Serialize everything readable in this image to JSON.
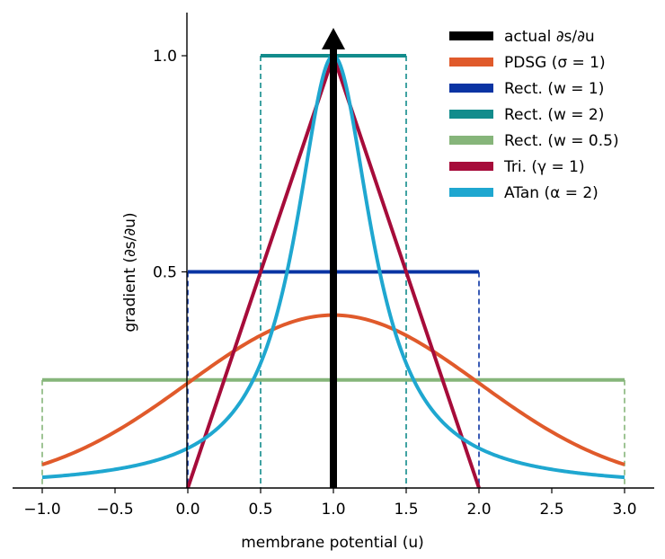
{
  "chart_data": {
    "type": "line",
    "xlabel": "membrane potential (u)",
    "ylabel": "gradient (∂s/∂u)",
    "xlim": [
      -1.0,
      3.0
    ],
    "ylim": [
      0.0,
      1.0
    ],
    "x_ticks": [
      "−1.0",
      "−0.5",
      "0.0",
      "0.5",
      "1.0",
      "1.5",
      "2.0",
      "2.5",
      "3.0"
    ],
    "x_tick_values": [
      -1.0,
      -0.5,
      0.0,
      0.5,
      1.0,
      1.5,
      2.0,
      2.5,
      3.0
    ],
    "y_ticks": [
      "0.5",
      "1.0"
    ],
    "y_tick_values": [
      0.5,
      1.0
    ],
    "grid": false,
    "legend_position": "top-right",
    "series": [
      {
        "name": "actual ∂s/∂u",
        "kind": "dirac",
        "color": "#000000",
        "x": 1.0
      },
      {
        "name": "PDSG (σ = 1)",
        "kind": "gaussian",
        "color": "#e05a2b",
        "mu": 1.0,
        "sigma": 1.0,
        "peak": 0.4
      },
      {
        "name": "Rect. (w = 1)",
        "kind": "rect",
        "color": "#0a34a3",
        "x": [
          0.0,
          2.0
        ],
        "y": 0.5
      },
      {
        "name": "Rect. (w = 2)",
        "kind": "rect",
        "color": "#128c8c",
        "x": [
          0.5,
          1.5
        ],
        "y": 1.0
      },
      {
        "name": "Rect. (w = 0.5)",
        "kind": "rect",
        "color": "#86b57a",
        "x": [
          -1.0,
          3.0
        ],
        "y": 0.25
      },
      {
        "name": "Tri. (γ = 1)",
        "kind": "triangle",
        "color": "#a60c3a",
        "x": [
          0.0,
          1.0,
          2.0
        ],
        "y": [
          0.0,
          1.0,
          0.0
        ]
      },
      {
        "name": "ATan (α = 2)",
        "kind": "atan",
        "color": "#1fa7d0",
        "center": 1.0,
        "alpha": 2.0
      }
    ]
  }
}
